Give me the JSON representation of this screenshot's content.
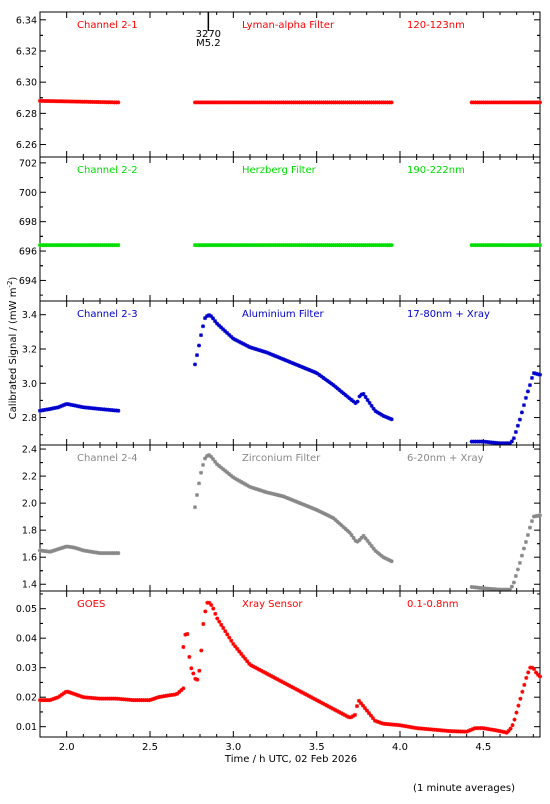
{
  "figure": {
    "xlabel": "Time / h UTC, 02 Feb 2026",
    "ylabel": "Calibrated Signal / (mW m",
    "ylabel_sup": "-2",
    "ylabel_end": ")",
    "footnote": "(1 minute averages)",
    "event_marker": {
      "time": 2.85,
      "label_top": "3270",
      "label_bottom": "M5.2"
    },
    "x_ticks": [
      "2.0",
      "2.5",
      "3.0",
      "3.5",
      "4.0",
      "4.5"
    ]
  },
  "chart_data": [
    {
      "type": "scatter",
      "channel": "Channel 2-1",
      "filter": "Lyman-alpha Filter",
      "band": "120-123nm",
      "color": "#ff0000",
      "xlim": [
        1.84,
        4.84
      ],
      "ylim": [
        6.252,
        6.345
      ],
      "y_ticks": [
        "6.26",
        "6.28",
        "6.30",
        "6.32",
        "6.34"
      ],
      "segments": [
        {
          "x": [
            1.84,
            2.31
          ],
          "y": [
            6.288,
            6.287
          ]
        },
        {
          "x": [
            2.77,
            3.95
          ],
          "y": [
            6.287,
            6.287
          ]
        },
        {
          "x": [
            4.43,
            4.84
          ],
          "y": [
            6.287,
            6.287
          ]
        }
      ]
    },
    {
      "type": "scatter",
      "channel": "Channel 2-2",
      "filter": "Herzberg Filter",
      "band": "190-222nm",
      "color": "#00dd00",
      "xlim": [
        1.84,
        4.84
      ],
      "ylim": [
        692.6,
        702.4
      ],
      "y_ticks": [
        "694",
        "696",
        "698",
        "700",
        "702"
      ],
      "segments": [
        {
          "x": [
            1.84,
            2.31
          ],
          "y": [
            696.4,
            696.4
          ]
        },
        {
          "x": [
            2.77,
            3.95
          ],
          "y": [
            696.4,
            696.4
          ]
        },
        {
          "x": [
            4.43,
            4.84
          ],
          "y": [
            696.4,
            696.4
          ]
        }
      ]
    },
    {
      "type": "scatter",
      "channel": "Channel 2-3",
      "filter": "Aluminium Filter",
      "band": "17-80nm + Xray",
      "color": "#0000cc",
      "xlim": [
        1.84,
        4.84
      ],
      "ylim": [
        2.64,
        3.48
      ],
      "y_ticks": [
        "2.8",
        "3.0",
        "3.2",
        "3.4"
      ],
      "segments": [
        {
          "x": [
            1.84,
            1.9,
            1.95,
            2.0,
            2.05,
            2.1,
            2.2,
            2.31
          ],
          "y": [
            2.84,
            2.85,
            2.86,
            2.88,
            2.87,
            2.86,
            2.85,
            2.84
          ]
        },
        {
          "x": [
            2.77,
            2.79,
            2.81,
            2.83,
            2.85,
            2.87,
            2.9,
            3.0,
            3.1,
            3.2,
            3.3,
            3.4,
            3.5,
            3.6,
            3.7,
            3.74,
            3.76,
            3.78,
            3.8,
            3.85,
            3.9,
            3.95
          ],
          "y": [
            3.11,
            3.2,
            3.3,
            3.38,
            3.4,
            3.39,
            3.35,
            3.26,
            3.21,
            3.18,
            3.14,
            3.1,
            3.06,
            2.99,
            2.91,
            2.88,
            2.93,
            2.94,
            2.91,
            2.84,
            2.81,
            2.79
          ]
        },
        {
          "x": [
            4.43,
            4.5,
            4.6,
            4.66,
            4.68,
            4.7,
            4.72,
            4.74,
            4.76,
            4.78,
            4.8,
            4.84
          ],
          "y": [
            2.66,
            2.66,
            2.65,
            2.65,
            2.67,
            2.73,
            2.79,
            2.86,
            2.93,
            2.99,
            3.06,
            3.05
          ]
        }
      ]
    },
    {
      "type": "scatter",
      "channel": "Channel 2-4",
      "filter": "Zirconium Filter",
      "band": "6-20nm + Xray",
      "color": "#888888",
      "xlim": [
        1.84,
        4.84
      ],
      "ylim": [
        1.35,
        2.43
      ],
      "y_ticks": [
        "1.4",
        "1.6",
        "1.8",
        "2.0",
        "2.2",
        "2.4"
      ],
      "segments": [
        {
          "x": [
            1.84,
            1.9,
            2.0,
            2.05,
            2.1,
            2.2,
            2.31
          ],
          "y": [
            1.65,
            1.64,
            1.68,
            1.67,
            1.65,
            1.63,
            1.63
          ]
        },
        {
          "x": [
            2.77,
            2.79,
            2.81,
            2.83,
            2.85,
            2.87,
            2.9,
            3.0,
            3.1,
            3.2,
            3.3,
            3.4,
            3.5,
            3.6,
            3.7,
            3.74,
            3.76,
            3.78,
            3.8,
            3.85,
            3.9,
            3.95
          ],
          "y": [
            1.97,
            2.12,
            2.25,
            2.33,
            2.36,
            2.34,
            2.29,
            2.19,
            2.12,
            2.08,
            2.05,
            2.0,
            1.95,
            1.89,
            1.78,
            1.71,
            1.73,
            1.76,
            1.73,
            1.65,
            1.6,
            1.57
          ]
        },
        {
          "x": [
            4.43,
            4.5,
            4.6,
            4.66,
            4.68,
            4.7,
            4.72,
            4.74,
            4.76,
            4.78,
            4.8,
            4.84
          ],
          "y": [
            1.38,
            1.37,
            1.36,
            1.36,
            1.4,
            1.48,
            1.56,
            1.65,
            1.73,
            1.82,
            1.9,
            1.91
          ]
        }
      ]
    },
    {
      "type": "scatter",
      "channel": "GOES",
      "filter": "Xray Sensor",
      "band": "0.1-0.8nm",
      "color": "#ff0000",
      "xlim": [
        1.84,
        4.84
      ],
      "ylim": [
        0.0065,
        0.056
      ],
      "y_ticks": [
        "0.01",
        "0.02",
        "0.03",
        "0.04",
        "0.05"
      ],
      "segments": [
        {
          "x": [
            1.84,
            1.9,
            1.95,
            2.0,
            2.05,
            2.1,
            2.2,
            2.3,
            2.4,
            2.5,
            2.55,
            2.6,
            2.66,
            2.68,
            2.7
          ],
          "y": [
            0.019,
            0.019,
            0.02,
            0.022,
            0.021,
            0.02,
            0.0195,
            0.0195,
            0.019,
            0.019,
            0.02,
            0.0205,
            0.021,
            0.022,
            0.023
          ]
        },
        {
          "x": [
            2.7,
            2.72,
            2.74,
            2.76,
            2.78,
            2.8,
            2.82,
            2.84,
            2.86,
            2.88,
            2.9,
            3.0,
            3.1,
            3.2,
            3.3,
            3.4,
            3.5,
            3.6,
            3.7,
            3.73,
            3.75,
            3.78,
            3.85,
            3.9,
            4.0,
            4.1,
            4.2,
            4.3,
            4.4,
            4.45,
            4.5,
            4.6,
            4.64
          ],
          "y": [
            0.037,
            0.044,
            0.031,
            0.028,
            0.025,
            0.03,
            0.045,
            0.052,
            0.052,
            0.05,
            0.047,
            0.038,
            0.031,
            0.028,
            0.025,
            0.022,
            0.019,
            0.016,
            0.013,
            0.014,
            0.019,
            0.017,
            0.012,
            0.011,
            0.0105,
            0.0095,
            0.009,
            0.0085,
            0.0083,
            0.0095,
            0.0095,
            0.0085,
            0.008
          ]
        },
        {
          "x": [
            4.64,
            4.66,
            4.68,
            4.7,
            4.72,
            4.74,
            4.76,
            4.78,
            4.8,
            4.82,
            4.84
          ],
          "y": [
            0.008,
            0.009,
            0.011,
            0.015,
            0.019,
            0.023,
            0.027,
            0.03,
            0.03,
            0.028,
            0.027
          ]
        }
      ]
    }
  ]
}
